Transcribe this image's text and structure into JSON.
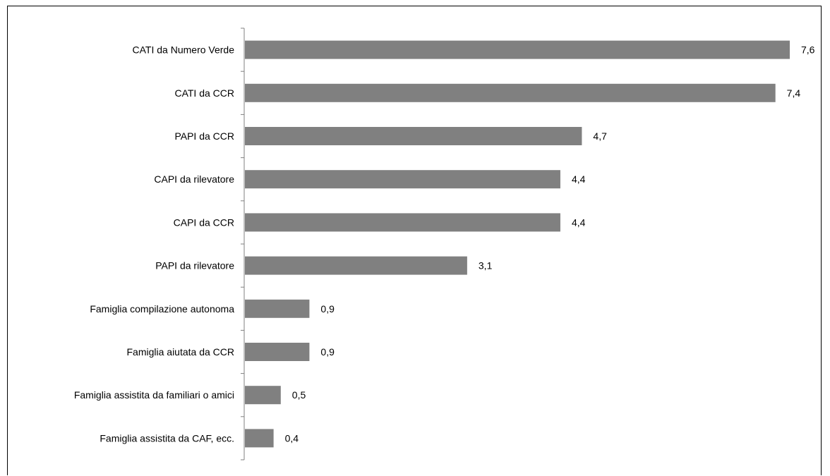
{
  "chart_data": {
    "type": "bar",
    "orientation": "horizontal",
    "categories": [
      "CATI da Numero Verde",
      "CATI da CCR",
      "PAPI da CCR",
      "CAPI da rilevatore",
      "CAPI da CCR",
      "PAPI da rilevatore",
      "Famiglia compilazione autonoma",
      "Famiglia aiutata da CCR",
      "Famiglia assistita da familiari o amici",
      "Famiglia assistita da CAF, ecc."
    ],
    "values": [
      7.6,
      7.4,
      4.7,
      4.4,
      4.4,
      3.1,
      0.9,
      0.9,
      0.5,
      0.4
    ],
    "value_labels": [
      "7,6",
      "7,4",
      "4,7",
      "4,4",
      "4,4",
      "3,1",
      "0,9",
      "0,9",
      "0,5",
      "0,4"
    ],
    "title": "",
    "xlabel": "",
    "ylabel": "",
    "xlim": [
      0,
      7.6
    ],
    "grid": false,
    "legend": "none",
    "colors": {
      "bar": "#808080",
      "axis": "#808080",
      "text": "#000000",
      "border": "#000000"
    }
  }
}
